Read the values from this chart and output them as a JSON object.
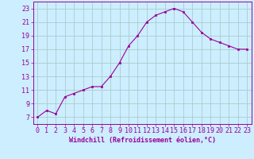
{
  "x": [
    0,
    1,
    2,
    3,
    4,
    5,
    6,
    7,
    8,
    9,
    10,
    11,
    12,
    13,
    14,
    15,
    16,
    17,
    18,
    19,
    20,
    21,
    22,
    23
  ],
  "y": [
    7,
    8,
    7.5,
    10,
    10.5,
    11,
    11.5,
    11.5,
    13,
    15,
    17.5,
    19,
    21,
    22,
    22.5,
    23,
    22.5,
    21,
    19.5,
    18.5,
    18,
    17.5,
    17,
    17
  ],
  "line_color": "#990099",
  "marker": "s",
  "marker_size": 2,
  "bg_color": "#cceeff",
  "grid_color": "#aacccc",
  "xlabel": "Windchill (Refroidissement éolien,°C)",
  "xlim": [
    -0.5,
    23.5
  ],
  "ylim": [
    6,
    24
  ],
  "yticks": [
    7,
    9,
    11,
    13,
    15,
    17,
    19,
    21,
    23
  ],
  "xticks": [
    0,
    1,
    2,
    3,
    4,
    5,
    6,
    7,
    8,
    9,
    10,
    11,
    12,
    13,
    14,
    15,
    16,
    17,
    18,
    19,
    20,
    21,
    22,
    23
  ],
  "xlabel_fontsize": 6,
  "tick_fontsize": 6
}
